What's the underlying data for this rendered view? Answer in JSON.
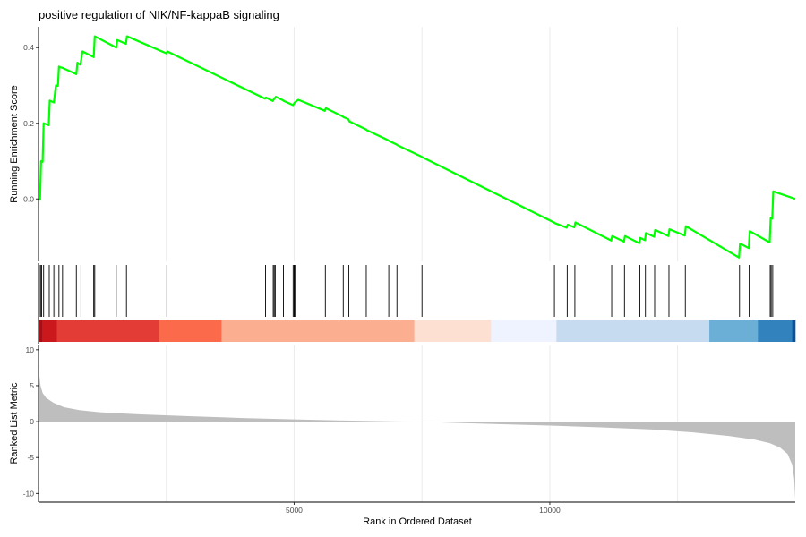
{
  "chart_data": {
    "type": "line",
    "title": "positive regulation of NIK/NF-kappaB signaling",
    "xlabel": "Rank in Ordered Dataset",
    "x_ticks": [
      {
        "value": 5000,
        "label": "5000"
      },
      {
        "value": 10000,
        "label": "10000"
      }
    ],
    "xlim": [
      0,
      14800
    ],
    "grid": true,
    "panels": [
      {
        "id": "enrichment",
        "ylabel": "Running Enrichment Score",
        "ylim": [
          -0.165,
          0.455
        ],
        "y_ticks": [
          {
            "value": 0.0,
            "label": "0.0"
          },
          {
            "value": 0.2,
            "label": "0.2"
          },
          {
            "value": 0.4,
            "label": "0.4"
          }
        ],
        "line_color": "#00ff00",
        "series": [
          {
            "x": [
              0,
              30,
              50,
              80,
              100,
              200,
              220,
              300,
              340,
              380,
              400,
              420,
              460,
              740,
              760,
              820,
              860,
              1080,
              1100,
              1520,
              1540,
              1710,
              1730,
              2500,
              2520,
              4430,
              4450,
              4580,
              4600,
              4620,
              4640,
              4780,
              4800,
              4980,
              5000,
              5020,
              5040,
              5060,
              5080,
              5100,
              5120,
              5140,
              5600,
              5620,
              5950,
              5970,
              6060,
              6080,
              6400,
              6420,
              6840,
              6860,
              7000,
              7020,
              7490,
              7510,
              10080,
              10100,
              10330,
              10350,
              10480,
              10500,
              11200,
              11220,
              11450,
              11470,
              11750,
              11770,
              11860,
              11880,
              12040,
              12060,
              12320,
              12340,
              12640,
              12660,
              13700,
              13720,
              13890,
              13910,
              14300,
              14320,
              14350,
              14370,
              14800
            ],
            "y": [
              0.0,
              -0.002,
              0.1,
              0.098,
              0.2,
              0.195,
              0.26,
              0.255,
              0.3,
              0.299,
              0.35,
              0.348,
              0.347,
              0.33,
              0.36,
              0.355,
              0.39,
              0.375,
              0.43,
              0.4,
              0.42,
              0.41,
              0.43,
              0.385,
              0.39,
              0.265,
              0.268,
              0.259,
              0.263,
              0.266,
              0.27,
              0.261,
              0.259,
              0.248,
              0.253,
              0.256,
              0.258,
              0.26,
              0.262,
              0.261,
              0.26,
              0.259,
              0.233,
              0.24,
              0.218,
              0.216,
              0.211,
              0.205,
              0.184,
              0.182,
              0.155,
              0.153,
              0.144,
              0.142,
              0.112,
              0.11,
              -0.062,
              -0.064,
              -0.076,
              -0.068,
              -0.075,
              -0.062,
              -0.11,
              -0.098,
              -0.113,
              -0.098,
              -0.117,
              -0.103,
              -0.109,
              -0.09,
              -0.1,
              -0.082,
              -0.098,
              -0.08,
              -0.097,
              -0.072,
              -0.155,
              -0.118,
              -0.13,
              -0.085,
              -0.115,
              -0.05,
              -0.052,
              0.02,
              0.0
            ]
          }
        ]
      },
      {
        "id": "hits",
        "hit_ranks": [
          15,
          40,
          60,
          100,
          210,
          300,
          340,
          400,
          470,
          740,
          830,
          1080,
          1100,
          1520,
          1720,
          2510,
          4440,
          4590,
          4610,
          4630,
          4790,
          4980,
          5000,
          5010,
          5030,
          5610,
          5960,
          6070,
          6410,
          6850,
          7010,
          7500,
          10090,
          10340,
          10490,
          11210,
          11460,
          11760,
          11870,
          12050,
          12330,
          12650,
          13710,
          13900,
          14310,
          14330,
          14360
        ],
        "color_bar": [
          {
            "from": 0,
            "to": 70,
            "color": "#a50f15"
          },
          {
            "from": 70,
            "to": 360,
            "color": "#cb181d"
          },
          {
            "from": 360,
            "to": 2360,
            "color": "#e33b36"
          },
          {
            "from": 2360,
            "to": 3580,
            "color": "#fb6a4a"
          },
          {
            "from": 3580,
            "to": 7350,
            "color": "#fcae91"
          },
          {
            "from": 7350,
            "to": 8850,
            "color": "#fee0d2"
          },
          {
            "from": 8850,
            "to": 10130,
            "color": "#eff3ff"
          },
          {
            "from": 10130,
            "to": 13120,
            "color": "#c6dbef"
          },
          {
            "from": 13120,
            "to": 14070,
            "color": "#6baed6"
          },
          {
            "from": 14070,
            "to": 14740,
            "color": "#3182bd"
          },
          {
            "from": 14740,
            "to": 14800,
            "color": "#08519c"
          }
        ]
      },
      {
        "id": "ranked-metric",
        "ylabel": "Ranked List Metric",
        "ylim": [
          -11.2,
          10.6
        ],
        "y_ticks": [
          {
            "value": 10,
            "label": "10"
          },
          {
            "value": 5,
            "label": "5"
          },
          {
            "value": 0,
            "label": "0"
          },
          {
            "value": -5,
            "label": "-5"
          },
          {
            "value": -10,
            "label": "-10"
          }
        ],
        "fill_color": "#bebebe",
        "series": [
          {
            "x": [
              0,
              15,
              40,
              80,
              150,
              300,
              500,
              800,
              1200,
              2000,
              3000,
              4000,
              5000,
              6000,
              7000,
              7400,
              8000,
              9000,
              10000,
              11000,
              12000,
              12800,
              13500,
              14000,
              14300,
              14500,
              14650,
              14740,
              14780,
              14800
            ],
            "y": [
              10.2,
              6.5,
              5.0,
              4.0,
              3.3,
              2.6,
              2.0,
              1.6,
              1.3,
              1.0,
              0.75,
              0.5,
              0.3,
              0.15,
              0.03,
              0.0,
              -0.15,
              -0.35,
              -0.55,
              -0.8,
              -1.1,
              -1.5,
              -2.0,
              -2.5,
              -3.0,
              -3.6,
              -4.5,
              -6.0,
              -8.0,
              -10.8
            ]
          }
        ]
      }
    ]
  }
}
